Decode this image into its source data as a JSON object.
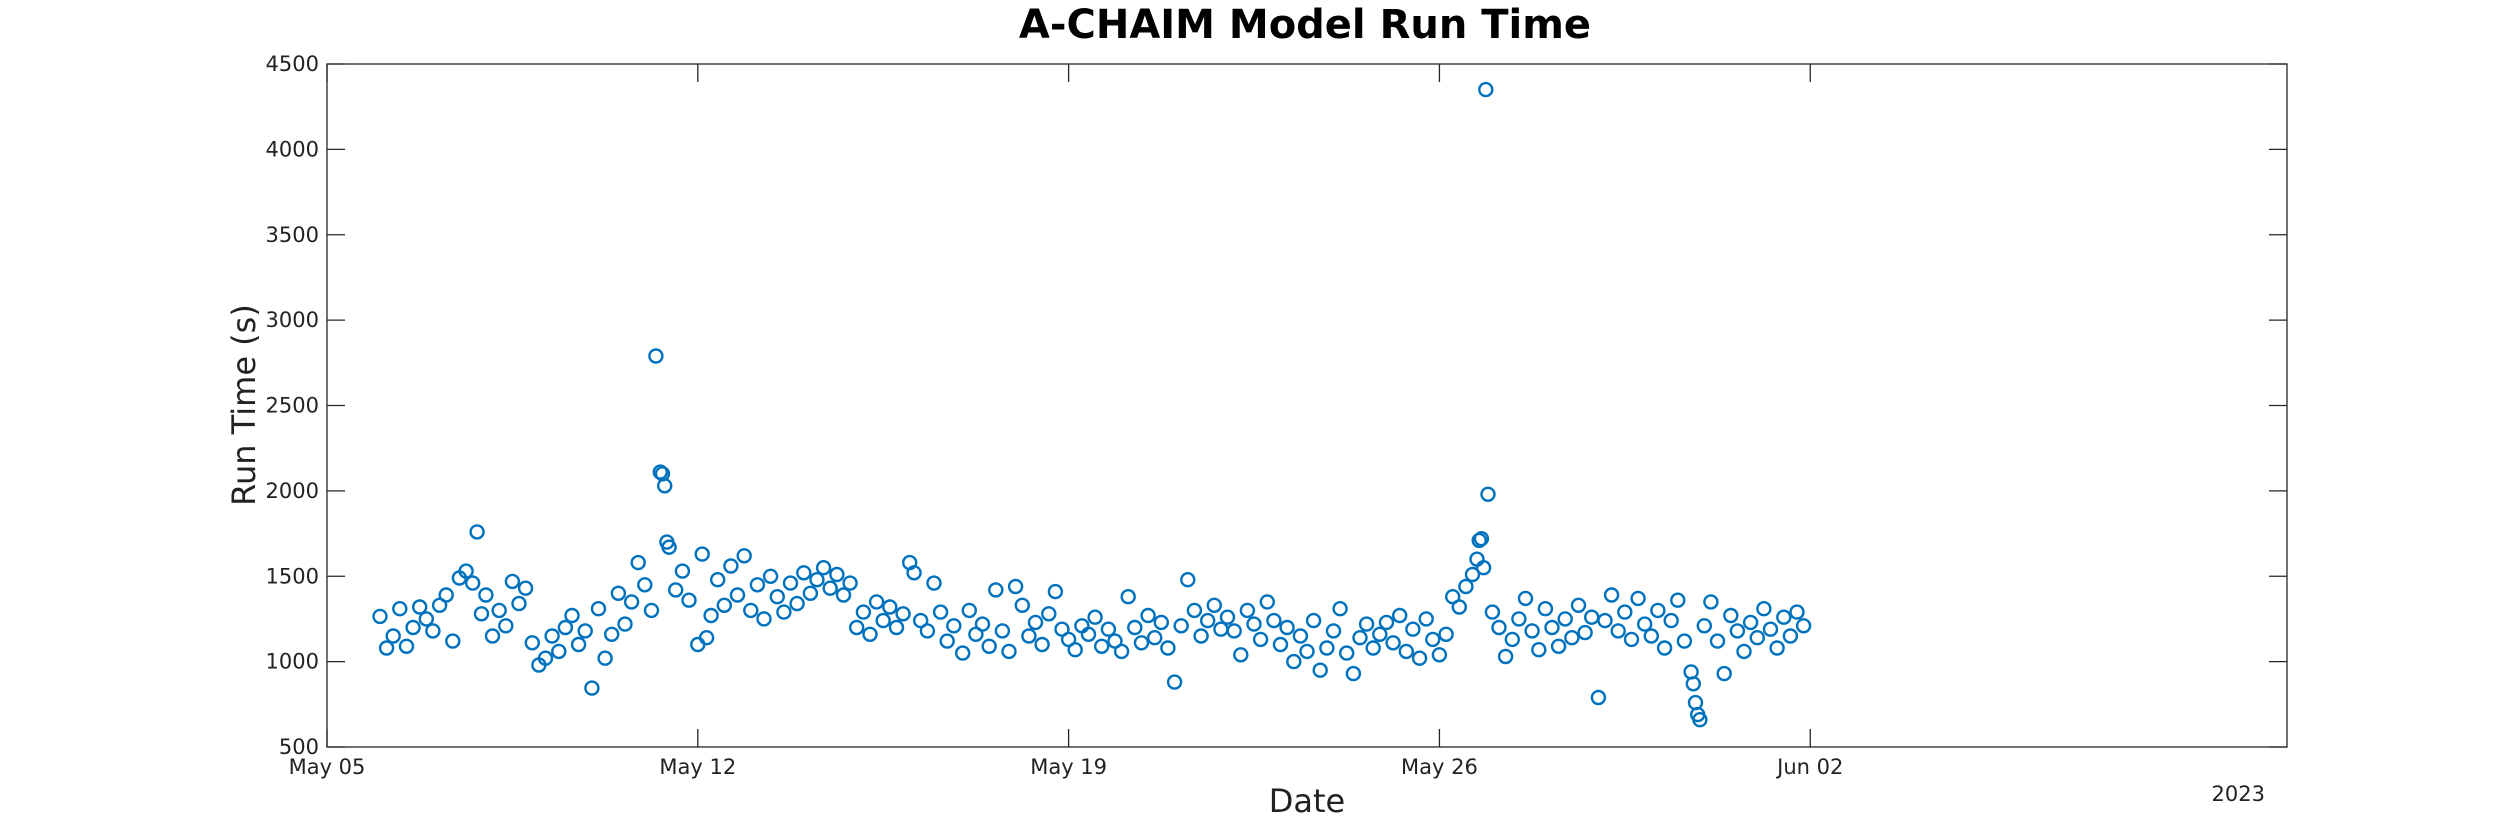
{
  "chart_data": {
    "type": "scatter",
    "title": "A-CHAIM Model Run Time",
    "xlabel": "Date",
    "ylabel": "Run Time (s)",
    "x_year_label": "2023",
    "x_axis_type": "date",
    "xlim": [
      "2023-05-05",
      "2023-06-11"
    ],
    "x_ticks": [
      {
        "date": "2023-05-05",
        "label": "May 05"
      },
      {
        "date": "2023-05-12",
        "label": "May 12"
      },
      {
        "date": "2023-05-19",
        "label": "May 19"
      },
      {
        "date": "2023-05-26",
        "label": "May 26"
      },
      {
        "date": "2023-06-02",
        "label": "Jun 02"
      }
    ],
    "ylim": [
      500,
      4500
    ],
    "y_ticks": [
      500,
      1000,
      1500,
      2000,
      2500,
      3000,
      3500,
      4000,
      4500
    ],
    "grid": false,
    "legend": "none",
    "marker": "circle-open",
    "marker_color": "#0072BD",
    "series": [
      {
        "values_description_note": "",
        "points": [
          [
            "2023-05-06T00:00",
            1265
          ],
          [
            "2023-05-06T03:00",
            1080
          ],
          [
            "2023-05-06T06:00",
            1150
          ],
          [
            "2023-05-06T09:00",
            1310
          ],
          [
            "2023-05-06T12:00",
            1090
          ],
          [
            "2023-05-06T15:00",
            1200
          ],
          [
            "2023-05-06T18:00",
            1320
          ],
          [
            "2023-05-06T21:00",
            1250
          ],
          [
            "2023-05-07T00:00",
            1180
          ],
          [
            "2023-05-07T03:00",
            1330
          ],
          [
            "2023-05-07T06:00",
            1390
          ],
          [
            "2023-05-07T09:00",
            1120
          ],
          [
            "2023-05-07T12:00",
            1490
          ],
          [
            "2023-05-07T15:00",
            1530
          ],
          [
            "2023-05-07T18:00",
            1460
          ],
          [
            "2023-05-07T20:00",
            1760
          ],
          [
            "2023-05-07T22:00",
            1280
          ],
          [
            "2023-05-08T00:00",
            1390
          ],
          [
            "2023-05-08T03:00",
            1150
          ],
          [
            "2023-05-08T06:00",
            1300
          ],
          [
            "2023-05-08T09:00",
            1210
          ],
          [
            "2023-05-08T12:00",
            1470
          ],
          [
            "2023-05-08T15:00",
            1340
          ],
          [
            "2023-05-08T18:00",
            1430
          ],
          [
            "2023-05-08T21:00",
            1110
          ],
          [
            "2023-05-09T00:00",
            980
          ],
          [
            "2023-05-09T03:00",
            1020
          ],
          [
            "2023-05-09T06:00",
            1150
          ],
          [
            "2023-05-09T09:00",
            1060
          ],
          [
            "2023-05-09T12:00",
            1200
          ],
          [
            "2023-05-09T15:00",
            1270
          ],
          [
            "2023-05-09T18:00",
            1100
          ],
          [
            "2023-05-09T21:00",
            1180
          ],
          [
            "2023-05-10T00:00",
            845
          ],
          [
            "2023-05-10T03:00",
            1310
          ],
          [
            "2023-05-10T06:00",
            1020
          ],
          [
            "2023-05-10T09:00",
            1160
          ],
          [
            "2023-05-10T12:00",
            1400
          ],
          [
            "2023-05-10T15:00",
            1220
          ],
          [
            "2023-05-10T18:00",
            1350
          ],
          [
            "2023-05-10T21:00",
            1580
          ],
          [
            "2023-05-11T00:00",
            1450
          ],
          [
            "2023-05-11T03:00",
            1300
          ],
          [
            "2023-05-11T05:00",
            2790
          ],
          [
            "2023-05-11T07:00",
            2110
          ],
          [
            "2023-05-11T08:00",
            2100
          ],
          [
            "2023-05-11T09:00",
            2030
          ],
          [
            "2023-05-11T10:00",
            1700
          ],
          [
            "2023-05-11T11:00",
            1670
          ],
          [
            "2023-05-11T14:00",
            1420
          ],
          [
            "2023-05-11T17:00",
            1530
          ],
          [
            "2023-05-11T20:00",
            1360
          ],
          [
            "2023-05-12T00:00",
            1100
          ],
          [
            "2023-05-12T02:00",
            1630
          ],
          [
            "2023-05-12T04:00",
            1140
          ],
          [
            "2023-05-12T06:00",
            1270
          ],
          [
            "2023-05-12T09:00",
            1480
          ],
          [
            "2023-05-12T12:00",
            1330
          ],
          [
            "2023-05-12T15:00",
            1560
          ],
          [
            "2023-05-12T18:00",
            1390
          ],
          [
            "2023-05-12T21:00",
            1620
          ],
          [
            "2023-05-13T00:00",
            1300
          ],
          [
            "2023-05-13T03:00",
            1450
          ],
          [
            "2023-05-13T06:00",
            1250
          ],
          [
            "2023-05-13T09:00",
            1500
          ],
          [
            "2023-05-13T12:00",
            1380
          ],
          [
            "2023-05-13T15:00",
            1290
          ],
          [
            "2023-05-13T18:00",
            1460
          ],
          [
            "2023-05-13T21:00",
            1340
          ],
          [
            "2023-05-14T00:00",
            1520
          ],
          [
            "2023-05-14T03:00",
            1400
          ],
          [
            "2023-05-14T06:00",
            1480
          ],
          [
            "2023-05-14T09:00",
            1550
          ],
          [
            "2023-05-14T12:00",
            1430
          ],
          [
            "2023-05-14T15:00",
            1510
          ],
          [
            "2023-05-14T18:00",
            1390
          ],
          [
            "2023-05-14T21:00",
            1460
          ],
          [
            "2023-05-15T00:00",
            1200
          ],
          [
            "2023-05-15T03:00",
            1290
          ],
          [
            "2023-05-15T06:00",
            1160
          ],
          [
            "2023-05-15T09:00",
            1350
          ],
          [
            "2023-05-15T12:00",
            1240
          ],
          [
            "2023-05-15T15:00",
            1320
          ],
          [
            "2023-05-15T18:00",
            1200
          ],
          [
            "2023-05-15T21:00",
            1280
          ],
          [
            "2023-05-16T00:00",
            1580
          ],
          [
            "2023-05-16T02:00",
            1520
          ],
          [
            "2023-05-16T05:00",
            1240
          ],
          [
            "2023-05-16T08:00",
            1180
          ],
          [
            "2023-05-16T11:00",
            1460
          ],
          [
            "2023-05-16T14:00",
            1290
          ],
          [
            "2023-05-16T17:00",
            1120
          ],
          [
            "2023-05-16T20:00",
            1210
          ],
          [
            "2023-05-17T00:00",
            1050
          ],
          [
            "2023-05-17T03:00",
            1300
          ],
          [
            "2023-05-17T06:00",
            1160
          ],
          [
            "2023-05-17T09:00",
            1220
          ],
          [
            "2023-05-17T12:00",
            1090
          ],
          [
            "2023-05-17T15:00",
            1420
          ],
          [
            "2023-05-17T18:00",
            1180
          ],
          [
            "2023-05-17T21:00",
            1060
          ],
          [
            "2023-05-18T00:00",
            1440
          ],
          [
            "2023-05-18T03:00",
            1330
          ],
          [
            "2023-05-18T06:00",
            1150
          ],
          [
            "2023-05-18T09:00",
            1230
          ],
          [
            "2023-05-18T12:00",
            1100
          ],
          [
            "2023-05-18T15:00",
            1280
          ],
          [
            "2023-05-18T18:00",
            1410
          ],
          [
            "2023-05-18T21:00",
            1190
          ],
          [
            "2023-05-19T00:00",
            1130
          ],
          [
            "2023-05-19T03:00",
            1070
          ],
          [
            "2023-05-19T06:00",
            1210
          ],
          [
            "2023-05-19T09:00",
            1160
          ],
          [
            "2023-05-19T12:00",
            1260
          ],
          [
            "2023-05-19T15:00",
            1090
          ],
          [
            "2023-05-19T18:00",
            1190
          ],
          [
            "2023-05-19T21:00",
            1120
          ],
          [
            "2023-05-20T00:00",
            1060
          ],
          [
            "2023-05-20T03:00",
            1380
          ],
          [
            "2023-05-20T06:00",
            1200
          ],
          [
            "2023-05-20T09:00",
            1110
          ],
          [
            "2023-05-20T12:00",
            1270
          ],
          [
            "2023-05-20T15:00",
            1140
          ],
          [
            "2023-05-20T18:00",
            1230
          ],
          [
            "2023-05-20T21:00",
            1080
          ],
          [
            "2023-05-21T00:00",
            880
          ],
          [
            "2023-05-21T03:00",
            1210
          ],
          [
            "2023-05-21T06:00",
            1480
          ],
          [
            "2023-05-21T09:00",
            1300
          ],
          [
            "2023-05-21T12:00",
            1150
          ],
          [
            "2023-05-21T15:00",
            1240
          ],
          [
            "2023-05-21T18:00",
            1330
          ],
          [
            "2023-05-21T21:00",
            1190
          ],
          [
            "2023-05-22T00:00",
            1260
          ],
          [
            "2023-05-22T03:00",
            1180
          ],
          [
            "2023-05-22T06:00",
            1040
          ],
          [
            "2023-05-22T09:00",
            1300
          ],
          [
            "2023-05-22T12:00",
            1220
          ],
          [
            "2023-05-22T15:00",
            1130
          ],
          [
            "2023-05-22T18:00",
            1350
          ],
          [
            "2023-05-22T21:00",
            1240
          ],
          [
            "2023-05-23T00:00",
            1100
          ],
          [
            "2023-05-23T03:00",
            1200
          ],
          [
            "2023-05-23T06:00",
            1000
          ],
          [
            "2023-05-23T09:00",
            1150
          ],
          [
            "2023-05-23T12:00",
            1060
          ],
          [
            "2023-05-23T15:00",
            1240
          ],
          [
            "2023-05-23T18:00",
            950
          ],
          [
            "2023-05-23T21:00",
            1080
          ],
          [
            "2023-05-24T00:00",
            1180
          ],
          [
            "2023-05-24T03:00",
            1310
          ],
          [
            "2023-05-24T06:00",
            1050
          ],
          [
            "2023-05-24T09:00",
            930
          ],
          [
            "2023-05-24T12:00",
            1140
          ],
          [
            "2023-05-24T15:00",
            1220
          ],
          [
            "2023-05-24T18:00",
            1080
          ],
          [
            "2023-05-24T21:00",
            1160
          ],
          [
            "2023-05-25T00:00",
            1230
          ],
          [
            "2023-05-25T03:00",
            1110
          ],
          [
            "2023-05-25T06:00",
            1270
          ],
          [
            "2023-05-25T09:00",
            1060
          ],
          [
            "2023-05-25T12:00",
            1190
          ],
          [
            "2023-05-25T15:00",
            1020
          ],
          [
            "2023-05-25T18:00",
            1250
          ],
          [
            "2023-05-25T21:00",
            1130
          ],
          [
            "2023-05-26T00:00",
            1040
          ],
          [
            "2023-05-26T03:00",
            1160
          ],
          [
            "2023-05-26T06:00",
            1380
          ],
          [
            "2023-05-26T09:00",
            1320
          ],
          [
            "2023-05-26T12:00",
            1440
          ],
          [
            "2023-05-26T15:00",
            1510
          ],
          [
            "2023-05-26T17:00",
            1600
          ],
          [
            "2023-05-26T18:00",
            1710
          ],
          [
            "2023-05-26T19:00",
            1720
          ],
          [
            "2023-05-26T20:00",
            1550
          ],
          [
            "2023-05-26T21:00",
            4350
          ],
          [
            "2023-05-26T22:00",
            1980
          ],
          [
            "2023-05-27T00:00",
            1290
          ],
          [
            "2023-05-27T03:00",
            1200
          ],
          [
            "2023-05-27T06:00",
            1030
          ],
          [
            "2023-05-27T09:00",
            1130
          ],
          [
            "2023-05-27T12:00",
            1250
          ],
          [
            "2023-05-27T15:00",
            1370
          ],
          [
            "2023-05-27T18:00",
            1180
          ],
          [
            "2023-05-27T21:00",
            1070
          ],
          [
            "2023-05-28T00:00",
            1310
          ],
          [
            "2023-05-28T03:00",
            1200
          ],
          [
            "2023-05-28T06:00",
            1090
          ],
          [
            "2023-05-28T09:00",
            1250
          ],
          [
            "2023-05-28T12:00",
            1140
          ],
          [
            "2023-05-28T15:00",
            1330
          ],
          [
            "2023-05-28T18:00",
            1170
          ],
          [
            "2023-05-28T21:00",
            1260
          ],
          [
            "2023-05-29T00:00",
            790
          ],
          [
            "2023-05-29T03:00",
            1240
          ],
          [
            "2023-05-29T06:00",
            1390
          ],
          [
            "2023-05-29T09:00",
            1180
          ],
          [
            "2023-05-29T12:00",
            1290
          ],
          [
            "2023-05-29T15:00",
            1130
          ],
          [
            "2023-05-29T18:00",
            1370
          ],
          [
            "2023-05-29T21:00",
            1220
          ],
          [
            "2023-05-30T00:00",
            1150
          ],
          [
            "2023-05-30T03:00",
            1300
          ],
          [
            "2023-05-30T06:00",
            1080
          ],
          [
            "2023-05-30T09:00",
            1240
          ],
          [
            "2023-05-30T12:00",
            1360
          ],
          [
            "2023-05-30T15:00",
            1120
          ],
          [
            "2023-05-30T18:00",
            940
          ],
          [
            "2023-05-30T19:00",
            870
          ],
          [
            "2023-05-30T20:00",
            760
          ],
          [
            "2023-05-30T21:00",
            690
          ],
          [
            "2023-05-30T22:00",
            660
          ],
          [
            "2023-05-31T00:00",
            1210
          ],
          [
            "2023-05-31T03:00",
            1350
          ],
          [
            "2023-05-31T06:00",
            1120
          ],
          [
            "2023-05-31T09:00",
            930
          ],
          [
            "2023-05-31T12:00",
            1270
          ],
          [
            "2023-05-31T15:00",
            1180
          ],
          [
            "2023-05-31T18:00",
            1060
          ],
          [
            "2023-05-31T21:00",
            1230
          ],
          [
            "2023-06-01T00:00",
            1140
          ],
          [
            "2023-06-01T03:00",
            1310
          ],
          [
            "2023-06-01T06:00",
            1190
          ],
          [
            "2023-06-01T09:00",
            1080
          ],
          [
            "2023-06-01T12:00",
            1260
          ],
          [
            "2023-06-01T15:00",
            1150
          ],
          [
            "2023-06-01T18:00",
            1290
          ],
          [
            "2023-06-01T21:00",
            1210
          ]
        ]
      }
    ]
  }
}
